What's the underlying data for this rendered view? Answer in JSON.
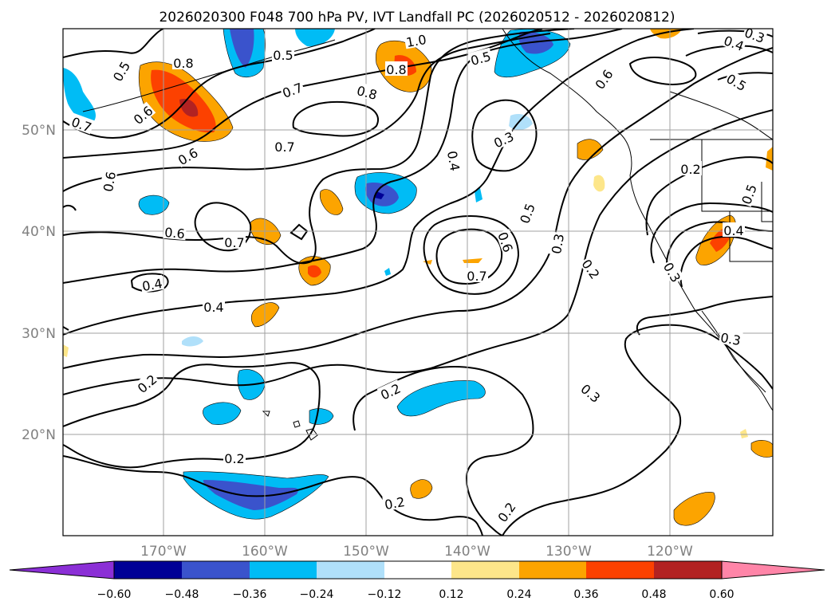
{
  "title": "2026020300 F048 700 hPa PV, IVT Landfall PC (2026020512 - 2026020812)",
  "map": {
    "lat_labels": [
      "50°N",
      "40°N",
      "30°N",
      "20°N"
    ],
    "lon_labels": [
      "170°W",
      "160°W",
      "150°W",
      "140°W",
      "130°W",
      "120°W"
    ]
  },
  "contour_labels": [
    {
      "id": "c1",
      "text": "0.5"
    },
    {
      "id": "c2",
      "text": "0.8"
    },
    {
      "id": "c3",
      "text": "0.6"
    },
    {
      "id": "c4",
      "text": "0.5"
    },
    {
      "id": "c5",
      "text": "1.0"
    },
    {
      "id": "c6",
      "text": "0.8"
    },
    {
      "id": "c7",
      "text": "0.5"
    },
    {
      "id": "c8",
      "text": "0.3"
    },
    {
      "id": "c9",
      "text": "0.4"
    },
    {
      "id": "c10",
      "text": "0.5"
    },
    {
      "id": "c11",
      "text": "0.6"
    },
    {
      "id": "c12",
      "text": "0.7"
    },
    {
      "id": "c13",
      "text": "0.8"
    },
    {
      "id": "c14",
      "text": "0.6"
    },
    {
      "id": "c15",
      "text": "0.7"
    },
    {
      "id": "c16",
      "text": "0.6"
    },
    {
      "id": "c17",
      "text": "0.7"
    },
    {
      "id": "c18",
      "text": "0.6"
    },
    {
      "id": "c19",
      "text": "0.6"
    },
    {
      "id": "c20",
      "text": "0.7"
    },
    {
      "id": "c21",
      "text": "0.4"
    },
    {
      "id": "c22",
      "text": "0.4"
    },
    {
      "id": "c23",
      "text": "0.3"
    },
    {
      "id": "c24",
      "text": "0.4"
    },
    {
      "id": "c25",
      "text": "0.5"
    },
    {
      "id": "c26",
      "text": "0.6"
    },
    {
      "id": "c27",
      "text": "0.7"
    },
    {
      "id": "c28",
      "text": "0.3"
    },
    {
      "id": "c29",
      "text": "0.2"
    },
    {
      "id": "c30",
      "text": "0.2"
    },
    {
      "id": "c31",
      "text": "0.4"
    },
    {
      "id": "c32",
      "text": "0.3"
    },
    {
      "id": "c33",
      "text": "0.3"
    },
    {
      "id": "c34",
      "text": "0.2"
    },
    {
      "id": "c35",
      "text": "0.2"
    },
    {
      "id": "c36",
      "text": "0.3"
    },
    {
      "id": "c37",
      "text": "0.2"
    },
    {
      "id": "c38",
      "text": "0.2"
    },
    {
      "id": "c39",
      "text": "0.2"
    },
    {
      "id": "c40",
      "text": "0.6"
    },
    {
      "id": "c41",
      "text": "0.5"
    },
    {
      "id": "c42",
      "text": "0.3"
    }
  ],
  "colorbar": {
    "ticks": [
      "−0.60",
      "−0.48",
      "−0.36",
      "−0.24",
      "−0.12",
      "0.12",
      "0.24",
      "0.36",
      "0.48",
      "0.60"
    ],
    "colors": [
      "#8b2fd6",
      "#000096",
      "#3a53cc",
      "#00bcf5",
      "#b0e0fa",
      "#ffffff",
      "#fde68a",
      "#fca400",
      "#fc4100",
      "#b22222",
      "#ff85a8"
    ]
  }
}
